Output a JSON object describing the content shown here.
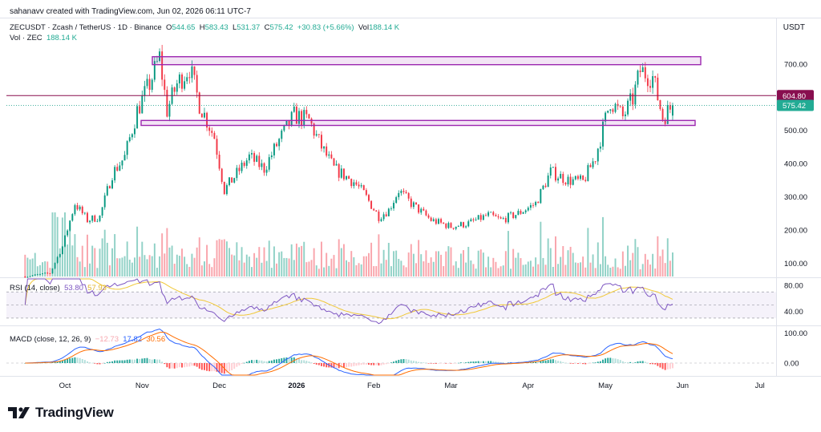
{
  "header": {
    "credit": "sahanavv created with TradingView.com, Jun 02, 2026 06:11 UTC-7",
    "symbol": "ZECUSDT · Zcash / TetherUS · 1D · Binance",
    "o_label": "O",
    "o_value": "544.65",
    "h_label": "H",
    "h_value": "583.43",
    "l_label": "L",
    "l_value": "531.37",
    "c_label": "C",
    "c_value": "575.42",
    "change": "+30.83 (+5.66%)",
    "vol_label": "Vol",
    "vol_value": "188.14 K",
    "vol_zec_label": "Vol · ZEC",
    "vol_zec_value": "188.14 K",
    "currency": "USDT"
  },
  "rsi": {
    "label": "RSI (14, close)",
    "value1": "53.80",
    "value2": "57.93"
  },
  "macd": {
    "label": "MACD (close, 12, 26, 9)",
    "value1": "−12.73",
    "value2": "17.82",
    "value3": "30.56"
  },
  "brand": {
    "name": "TradingView",
    "icon": "tradingview-logo-icon"
  },
  "colors": {
    "up": "#089981",
    "down": "#f23645",
    "zone": "#9c27b0",
    "resistance_line": "#880e4f",
    "price_tag": "#22ab94",
    "rsi_line": "#7e57c2",
    "rsi_ma": "#f0c838",
    "macd_line": "#2962ff",
    "signal_line": "#ff6d00"
  },
  "chart_data": [
    {
      "type": "candlestick",
      "pane": "price",
      "x_ticks": [
        "Oct",
        "Nov",
        "Dec",
        "2026",
        "Feb",
        "Mar",
        "Apr",
        "May",
        "Jun",
        "Jul"
      ],
      "y_ticks": [
        "100.00",
        "200.00",
        "300.00",
        "400.00",
        "500.00",
        "600.00",
        "700.00"
      ],
      "ylim": [
        60,
        760
      ],
      "scale": "linear",
      "current_price": 575.42,
      "current_price_label": "575.42",
      "level_line": 604.8,
      "level_line_label": "604.80",
      "zones": [
        {
          "from": 698,
          "to": 722
        },
        {
          "from": 515,
          "to": 530
        }
      ],
      "path": [
        [
          "2025-09-15",
          60
        ],
        [
          "2025-09-25",
          70
        ],
        [
          "2025-09-30",
          150
        ],
        [
          "2025-10-05",
          280
        ],
        [
          "2025-10-10",
          230
        ],
        [
          "2025-10-15",
          240
        ],
        [
          "2025-10-20",
          370
        ],
        [
          "2025-10-25",
          420
        ],
        [
          "2025-10-30",
          560
        ],
        [
          "2025-11-04",
          640
        ],
        [
          "2025-11-08",
          720
        ],
        [
          "2025-11-11",
          560
        ],
        [
          "2025-11-15",
          640
        ],
        [
          "2025-11-20",
          690
        ],
        [
          "2025-11-24",
          580
        ],
        [
          "2025-11-30",
          480
        ],
        [
          "2025-12-04",
          320
        ],
        [
          "2025-12-08",
          360
        ],
        [
          "2025-12-14",
          420
        ],
        [
          "2025-12-20",
          385
        ],
        [
          "2025-12-26",
          470
        ],
        [
          "2026-01-01",
          545
        ],
        [
          "2026-01-07",
          530
        ],
        [
          "2026-01-12",
          450
        ],
        [
          "2026-01-17",
          385
        ],
        [
          "2026-01-25",
          345
        ],
        [
          "2026-01-29",
          310
        ],
        [
          "2026-02-04",
          240
        ],
        [
          "2026-02-08",
          260
        ],
        [
          "2026-02-12",
          320
        ],
        [
          "2026-02-17",
          280
        ],
        [
          "2026-02-25",
          230
        ],
        [
          "2026-03-05",
          210
        ],
        [
          "2026-03-12",
          220
        ],
        [
          "2026-03-20",
          245
        ],
        [
          "2026-03-25",
          230
        ],
        [
          "2026-04-01",
          250
        ],
        [
          "2026-04-08",
          280
        ],
        [
          "2026-04-14",
          375
        ],
        [
          "2026-04-21",
          350
        ],
        [
          "2026-04-27",
          345
        ],
        [
          "2026-05-02",
          420
        ],
        [
          "2026-05-08",
          590
        ],
        [
          "2026-05-13",
          540
        ],
        [
          "2026-05-17",
          595
        ],
        [
          "2026-05-20",
          680
        ],
        [
          "2026-05-25",
          660
        ],
        [
          "2026-05-29",
          540
        ],
        [
          "2026-06-02",
          575
        ]
      ]
    },
    {
      "type": "bar",
      "pane": "volume",
      "series_name": "Vol · ZEC",
      "last_value": 188.14
    },
    {
      "type": "line",
      "pane": "rsi",
      "y_ticks": [
        "80.00",
        "40.00"
      ],
      "ylim": [
        20,
        90
      ],
      "bands": [
        70,
        30
      ],
      "series": [
        {
          "name": "RSI",
          "last": 53.8
        },
        {
          "name": "RSI-based MA",
          "last": 57.93
        }
      ]
    },
    {
      "type": "line",
      "pane": "macd",
      "y_ticks": [
        "100.00",
        "0.00"
      ],
      "ylim": [
        -40,
        120
      ],
      "series": [
        {
          "name": "Histogram",
          "last": -12.73
        },
        {
          "name": "MACD",
          "last": 17.82
        },
        {
          "name": "Signal",
          "last": 30.56
        }
      ]
    }
  ]
}
